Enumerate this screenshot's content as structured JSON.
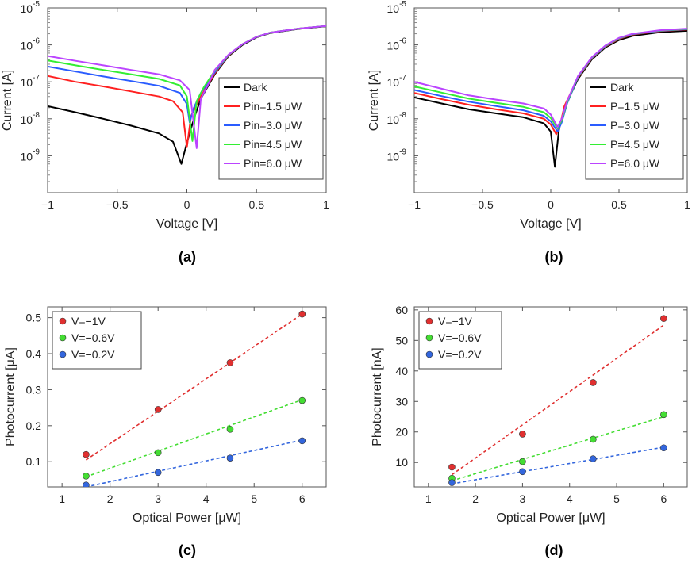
{
  "figure": {
    "panel_labels": [
      "(a)",
      "(b)",
      "(c)",
      "(d)"
    ]
  },
  "chart_data": [
    {
      "id": "a",
      "type": "line",
      "yscale": "log",
      "xlabel": "Voltage [V]",
      "ylabel": "Current [A]",
      "xlim": [
        -1,
        1
      ],
      "ylim_exp": [
        -10,
        -5
      ],
      "xticks": [
        -1,
        -0.5,
        0,
        0.5,
        1
      ],
      "xtick_labels": [
        "−1",
        "−0.5",
        "0",
        "0.5",
        "1"
      ],
      "yticks_exp": [
        -9,
        -8,
        -7,
        -6,
        -5
      ],
      "ytick_base": "10",
      "ytick_exps": [
        "-9",
        "-8",
        "-7",
        "-6",
        "-5"
      ],
      "legend_position": "lower-right",
      "series": [
        {
          "name": "Dark",
          "color": "#000000",
          "points": [
            [
              -1,
              2.2e-08
            ],
            [
              -0.8,
              1.5e-08
            ],
            [
              -0.6,
              1e-08
            ],
            [
              -0.4,
              6.5e-09
            ],
            [
              -0.2,
              4e-09
            ],
            [
              -0.1,
              2.4e-09
            ],
            [
              -0.04,
              6e-10
            ],
            [
              0.0,
              2.2e-09
            ],
            [
              0.05,
              1e-08
            ],
            [
              0.1,
              3.5e-08
            ],
            [
              0.2,
              1.6e-07
            ],
            [
              0.3,
              5e-07
            ],
            [
              0.4,
              1e-06
            ],
            [
              0.5,
              1.6e-06
            ],
            [
              0.6,
              2.1e-06
            ],
            [
              0.8,
              2.7e-06
            ],
            [
              1.0,
              3.2e-06
            ]
          ]
        },
        {
          "name": "Pin=1.5 μW",
          "color": "#ff2020",
          "points": [
            [
              -1,
              1.45e-07
            ],
            [
              -0.8,
              1e-07
            ],
            [
              -0.6,
              7.5e-08
            ],
            [
              -0.4,
              5.5e-08
            ],
            [
              -0.2,
              4e-08
            ],
            [
              -0.1,
              3e-08
            ],
            [
              -0.03,
              1.5e-08
            ],
            [
              0.0,
              1.7e-09
            ],
            [
              0.03,
              1.2e-08
            ],
            [
              0.1,
              4e-08
            ],
            [
              0.2,
              1.7e-07
            ],
            [
              0.3,
              5.2e-07
            ],
            [
              0.4,
              1.05e-06
            ],
            [
              0.5,
              1.65e-06
            ],
            [
              0.6,
              2.15e-06
            ],
            [
              0.8,
              2.75e-06
            ],
            [
              1.0,
              3.25e-06
            ]
          ]
        },
        {
          "name": "Pin=3.0 μW",
          "color": "#2a5cff",
          "points": [
            [
              -1,
              2.6e-07
            ],
            [
              -0.8,
              1.9e-07
            ],
            [
              -0.6,
              1.4e-07
            ],
            [
              -0.4,
              1.05e-07
            ],
            [
              -0.2,
              7.8e-08
            ],
            [
              -0.05,
              5e-08
            ],
            [
              0.0,
              2.5e-08
            ],
            [
              0.02,
              8e-09
            ],
            [
              0.05,
              2e-08
            ],
            [
              0.1,
              5e-08
            ],
            [
              0.2,
              1.8e-07
            ],
            [
              0.3,
              5.3e-07
            ],
            [
              0.4,
              1.05e-06
            ],
            [
              0.5,
              1.65e-06
            ],
            [
              0.6,
              2.15e-06
            ],
            [
              0.8,
              2.75e-06
            ],
            [
              1.0,
              3.25e-06
            ]
          ]
        },
        {
          "name": "Pin=4.5 μW",
          "color": "#33ee33",
          "points": [
            [
              -1,
              3.8e-07
            ],
            [
              -0.8,
              2.8e-07
            ],
            [
              -0.6,
              2.1e-07
            ],
            [
              -0.4,
              1.6e-07
            ],
            [
              -0.2,
              1.2e-07
            ],
            [
              -0.05,
              8e-08
            ],
            [
              0.0,
              4e-08
            ],
            [
              0.04,
              2.5e-09
            ],
            [
              0.07,
              3e-08
            ],
            [
              0.12,
              7e-08
            ],
            [
              0.2,
              2e-07
            ],
            [
              0.3,
              5.4e-07
            ],
            [
              0.4,
              1.05e-06
            ],
            [
              0.5,
              1.65e-06
            ],
            [
              0.6,
              2.15e-06
            ],
            [
              0.8,
              2.75e-06
            ],
            [
              1.0,
              3.25e-06
            ]
          ]
        },
        {
          "name": "Pin=6.0 μW",
          "color": "#bb44ff",
          "points": [
            [
              -1,
              5e-07
            ],
            [
              -0.8,
              3.7e-07
            ],
            [
              -0.6,
              2.8e-07
            ],
            [
              -0.4,
              2.1e-07
            ],
            [
              -0.2,
              1.6e-07
            ],
            [
              -0.05,
              1.1e-07
            ],
            [
              0.02,
              6e-08
            ],
            [
              0.07,
              1.6e-09
            ],
            [
              0.1,
              3.5e-08
            ],
            [
              0.15,
              8e-08
            ],
            [
              0.2,
              2.1e-07
            ],
            [
              0.3,
              5.5e-07
            ],
            [
              0.4,
              1.05e-06
            ],
            [
              0.5,
              1.65e-06
            ],
            [
              0.6,
              2.15e-06
            ],
            [
              0.8,
              2.75e-06
            ],
            [
              1.0,
              3.25e-06
            ]
          ]
        }
      ]
    },
    {
      "id": "b",
      "type": "line",
      "yscale": "log",
      "xlabel": "Voltage [V]",
      "ylabel": "Current [A]",
      "xlim": [
        -1,
        1
      ],
      "ylim_exp": [
        -10,
        -5
      ],
      "xticks": [
        -1,
        -0.5,
        0,
        0.5,
        1
      ],
      "xtick_labels": [
        "−1",
        "−0.5",
        "0",
        "0.5",
        "1"
      ],
      "yticks_exp": [
        -9,
        -8,
        -7,
        -6,
        -5
      ],
      "ytick_base": "10",
      "ytick_exps": [
        "-9",
        "-8",
        "-7",
        "-6",
        "-5"
      ],
      "legend_position": "lower-right",
      "series": [
        {
          "name": "Dark",
          "color": "#000000",
          "points": [
            [
              -1,
              3.8e-08
            ],
            [
              -0.8,
              2.6e-08
            ],
            [
              -0.6,
              1.8e-08
            ],
            [
              -0.4,
              1.4e-08
            ],
            [
              -0.2,
              1.1e-08
            ],
            [
              -0.05,
              7.5e-09
            ],
            [
              0.0,
              4.5e-09
            ],
            [
              0.03,
              5e-10
            ],
            [
              0.06,
              5e-09
            ],
            [
              0.1,
              2e-08
            ],
            [
              0.2,
              1.2e-07
            ],
            [
              0.3,
              4e-07
            ],
            [
              0.4,
              8.5e-07
            ],
            [
              0.5,
              1.35e-06
            ],
            [
              0.6,
              1.75e-06
            ],
            [
              0.8,
              2.2e-06
            ],
            [
              1.0,
              2.4e-06
            ]
          ]
        },
        {
          "name": "P=1.5 μW",
          "color": "#ff2020",
          "points": [
            [
              -1,
              5e-08
            ],
            [
              -0.8,
              3.4e-08
            ],
            [
              -0.6,
              2.4e-08
            ],
            [
              -0.4,
              1.8e-08
            ],
            [
              -0.2,
              1.4e-08
            ],
            [
              -0.05,
              1e-08
            ],
            [
              0.0,
              7e-09
            ],
            [
              0.04,
              3.8e-09
            ],
            [
              0.07,
              7e-09
            ],
            [
              0.1,
              2.2e-08
            ],
            [
              0.2,
              1.3e-07
            ],
            [
              0.3,
              4.3e-07
            ],
            [
              0.4,
              9e-07
            ],
            [
              0.5,
              1.45e-06
            ],
            [
              0.6,
              1.9e-06
            ],
            [
              0.8,
              2.35e-06
            ],
            [
              1.0,
              2.6e-06
            ]
          ]
        },
        {
          "name": "P=3.0 μW",
          "color": "#2a5cff",
          "points": [
            [
              -1,
              6e-08
            ],
            [
              -0.8,
              4.1e-08
            ],
            [
              -0.6,
              2.9e-08
            ],
            [
              -0.4,
              2.2e-08
            ],
            [
              -0.2,
              1.7e-08
            ],
            [
              -0.05,
              1.2e-08
            ],
            [
              0.0,
              8.5e-09
            ],
            [
              0.05,
              4.5e-09
            ],
            [
              0.08,
              8e-09
            ],
            [
              0.12,
              2.6e-08
            ],
            [
              0.2,
              1.35e-07
            ],
            [
              0.3,
              4.4e-07
            ],
            [
              0.4,
              9.2e-07
            ],
            [
              0.5,
              1.5e-06
            ],
            [
              0.6,
              1.95e-06
            ],
            [
              0.8,
              2.4e-06
            ],
            [
              1.0,
              2.65e-06
            ]
          ]
        },
        {
          "name": "P=4.5 μW",
          "color": "#33ee33",
          "points": [
            [
              -1,
              7.5e-08
            ],
            [
              -0.8,
              5.1e-08
            ],
            [
              -0.6,
              3.5e-08
            ],
            [
              -0.4,
              2.7e-08
            ],
            [
              -0.2,
              2.1e-08
            ],
            [
              -0.05,
              1.5e-08
            ],
            [
              0.0,
              1.05e-08
            ],
            [
              0.05,
              5.5e-09
            ],
            [
              0.08,
              9e-09
            ],
            [
              0.12,
              2.8e-08
            ],
            [
              0.2,
              1.4e-07
            ],
            [
              0.3,
              4.5e-07
            ],
            [
              0.4,
              9.4e-07
            ],
            [
              0.5,
              1.52e-06
            ],
            [
              0.6,
              1.98e-06
            ],
            [
              0.8,
              2.45e-06
            ],
            [
              1.0,
              2.7e-06
            ]
          ]
        },
        {
          "name": "P=6.0 μW",
          "color": "#bb44ff",
          "points": [
            [
              -1,
              1e-07
            ],
            [
              -0.8,
              6.5e-08
            ],
            [
              -0.6,
              4.3e-08
            ],
            [
              -0.4,
              3.3e-08
            ],
            [
              -0.2,
              2.6e-08
            ],
            [
              -0.05,
              1.9e-08
            ],
            [
              0.0,
              1.3e-08
            ],
            [
              0.05,
              6e-09
            ],
            [
              0.08,
              1e-08
            ],
            [
              0.12,
              3e-08
            ],
            [
              0.2,
              1.45e-07
            ],
            [
              0.3,
              4.6e-07
            ],
            [
              0.4,
              9.6e-07
            ],
            [
              0.5,
              1.55e-06
            ],
            [
              0.6,
              2e-06
            ],
            [
              0.8,
              2.5e-06
            ],
            [
              1.0,
              2.75e-06
            ]
          ]
        }
      ]
    },
    {
      "id": "c",
      "type": "scatter",
      "xlabel": "Optical Power [μW]",
      "ylabel": "Photocurrent [μA]",
      "xlim": [
        0.7,
        6.5
      ],
      "ylim": [
        0.03,
        0.53
      ],
      "xticks": [
        1,
        2,
        3,
        4,
        5,
        6
      ],
      "xtick_labels": [
        "1",
        "2",
        "3",
        "4",
        "5",
        "6"
      ],
      "yticks": [
        0.1,
        0.2,
        0.3,
        0.4,
        0.5
      ],
      "ytick_labels": [
        "0.1",
        "0.2",
        "0.3",
        "0.4",
        "0.5"
      ],
      "legend_position": "top-left",
      "series": [
        {
          "name": "V=−1V",
          "color": "#e03030",
          "x": [
            1.5,
            3,
            4.5,
            6
          ],
          "values": [
            0.12,
            0.245,
            0.375,
            0.51
          ],
          "fit": [
            [
              1.5,
              0.105
            ],
            [
              6,
              0.51
            ]
          ]
        },
        {
          "name": "V=−0.6V",
          "color": "#44dd33",
          "x": [
            1.5,
            3,
            4.5,
            6
          ],
          "values": [
            0.06,
            0.125,
            0.19,
            0.27
          ],
          "fit": [
            [
              1.5,
              0.058
            ],
            [
              6,
              0.272
            ]
          ]
        },
        {
          "name": "V=−0.2V",
          "color": "#3366dd",
          "x": [
            1.5,
            3,
            4.5,
            6
          ],
          "values": [
            0.035,
            0.07,
            0.11,
            0.158
          ],
          "fit": [
            [
              1.5,
              0.03
            ],
            [
              6,
              0.16
            ]
          ]
        }
      ]
    },
    {
      "id": "d",
      "type": "scatter",
      "xlabel": "Optical Power [μW]",
      "ylabel": "Photocurrent [nA]",
      "xlim": [
        0.7,
        6.5
      ],
      "ylim": [
        2,
        61
      ],
      "xticks": [
        1,
        2,
        3,
        4,
        5,
        6
      ],
      "xtick_labels": [
        "1",
        "2",
        "3",
        "4",
        "5",
        "6"
      ],
      "yticks": [
        10,
        20,
        30,
        40,
        50,
        60
      ],
      "ytick_labels": [
        "10",
        "20",
        "30",
        "40",
        "50",
        "60"
      ],
      "legend_position": "top-left",
      "series": [
        {
          "name": "V=−1V",
          "color": "#e03030",
          "x": [
            1.5,
            3,
            4.5,
            6
          ],
          "values": [
            8.5,
            19.3,
            36.2,
            57.2
          ],
          "fit": [
            [
              1.5,
              6.0
            ],
            [
              6,
              55.0
            ]
          ]
        },
        {
          "name": "V=−0.6V",
          "color": "#44dd33",
          "x": [
            1.5,
            3,
            4.5,
            6
          ],
          "values": [
            4.8,
            10.3,
            17.6,
            25.7
          ],
          "fit": [
            [
              1.5,
              4.0
            ],
            [
              6,
              25.0
            ]
          ]
        },
        {
          "name": "V=−0.2V",
          "color": "#3366dd",
          "x": [
            1.5,
            3,
            4.5,
            6
          ],
          "values": [
            3.4,
            7.0,
            11.2,
            14.8
          ],
          "fit": [
            [
              1.5,
              3.0
            ],
            [
              6,
              15.0
            ]
          ]
        }
      ]
    }
  ]
}
